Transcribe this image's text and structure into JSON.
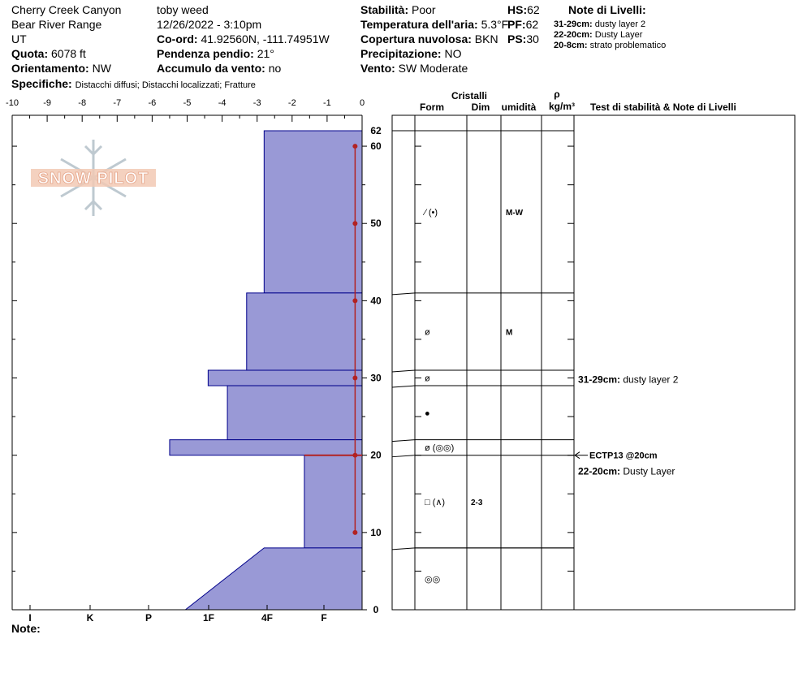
{
  "site": {
    "location": "Cherry Creek Canyon",
    "range": "Bear River Range",
    "state": "UT",
    "elevation_label": "Quota:",
    "elevation": "6078 ft",
    "aspect_label": "Orientamento:",
    "aspect": "NW",
    "observer": "toby weed",
    "datetime": "12/26/2022 - 3:10pm",
    "coord_label": "Co-ord:",
    "coords": "41.92560N, -111.74951W",
    "slope_label": "Pendenza pendio:",
    "slope": "21°",
    "wind_loading_label": "Accumulo da vento:",
    "wind_loading": "no",
    "specifics_label": "Specifiche:",
    "specifics": "Distacchi diffusi;  Distacchi localizzati;  Fratture"
  },
  "conditions": {
    "stability_label": "Stabilità:",
    "stability": "Poor",
    "air_temp_label": "Temperatura dell'aria:",
    "air_temp": "5.3°F",
    "cloud_label": "Copertura nuvolosa:",
    "cloud": "BKN",
    "precip_label": "Precipitazione:",
    "precip": "NO",
    "wind_label": "Vento:",
    "wind": "SW Moderate",
    "hs_label": "HS:",
    "hs": "62",
    "pf_label": "PF:",
    "pf": "62",
    "ps_label": "PS:",
    "ps": "30"
  },
  "layer_notes_header": "Note di Livelli:",
  "layer_notes": [
    {
      "range": "31-29cm:",
      "text": "dusty layer 2"
    },
    {
      "range": "22-20cm:",
      "text": "Dusty Layer"
    },
    {
      "range": "20-8cm:",
      "text": "strato problematico"
    }
  ],
  "footer_note_label": "Note:",
  "logo_text": "SNOWPILOT",
  "table_headers": {
    "cristalli": "Cristalli",
    "form": "Form",
    "dim": "Dim",
    "umidita": "umidità",
    "rho": "ρ",
    "density_unit": "kg/m³",
    "tests": "Test di stabilità & Note di Livelli"
  },
  "layer_table": [
    {
      "top": 62,
      "bottom": 41,
      "form": "⁄ (•)",
      "dim": "",
      "wet": "M-W"
    },
    {
      "top": 41,
      "bottom": 31,
      "form": "ø",
      "dim": "",
      "wet": "M"
    },
    {
      "top": 31,
      "bottom": 29,
      "form": "ø",
      "dim": "",
      "wet": ""
    },
    {
      "top": 29,
      "bottom": 22,
      "form": "●",
      "dim": "",
      "wet": ""
    },
    {
      "top": 22,
      "bottom": 20,
      "form": "ø (◎◎)",
      "dim": "",
      "wet": ""
    },
    {
      "top": 20,
      "bottom": 8,
      "form": "□ (∧)",
      "dim": "2-3",
      "wet": ""
    },
    {
      "top": 8,
      "bottom": 0,
      "form": "◎◎",
      "dim": "",
      "wet": ""
    }
  ],
  "stability_notes": [
    {
      "depth": 30,
      "range": "31-29cm:",
      "text": "dusty layer 2"
    },
    {
      "depth": 20,
      "test": "ECTP13 @20cm"
    },
    {
      "depth": 19,
      "range": "22-20cm:",
      "text": "Dusty Layer"
    }
  ],
  "chart_data": {
    "type": "snow-profile",
    "hardness_axis_ticks": [
      "-10",
      "-9",
      "-8",
      "-7",
      "-6",
      "-5",
      "-4",
      "-3",
      "-2",
      "-1",
      "0"
    ],
    "hardness_axis_labels": [
      "I",
      "K",
      "P",
      "1F",
      "4F",
      "F"
    ],
    "depth_ticks": [
      0,
      10,
      20,
      30,
      40,
      50,
      60
    ],
    "depth_top_label": "62",
    "ylim": [
      0,
      62
    ],
    "xlim": [
      -10,
      0
    ],
    "hardness_layers": [
      {
        "top": 62,
        "bottom": 41,
        "hardness": -2.8
      },
      {
        "top": 41,
        "bottom": 31,
        "hardness": -3.3
      },
      {
        "top": 31,
        "bottom": 29,
        "hardness": -4.4
      },
      {
        "top": 29,
        "bottom": 22,
        "hardness": -3.85
      },
      {
        "top": 22,
        "bottom": 20,
        "hardness": -5.5
      },
      {
        "top": 20,
        "bottom": 8,
        "hardness": -1.65
      },
      {
        "top": 8,
        "bottom": 0,
        "hardness_top": -2.8,
        "hardness_bottom": -5.05
      }
    ],
    "temperature_profile": {
      "x": [
        0,
        0,
        0,
        0,
        0,
        0,
        0
      ],
      "depth": [
        60,
        50,
        40,
        30,
        20,
        10,
        20
      ],
      "points": [
        60,
        50,
        40,
        30,
        20,
        10
      ],
      "value": -0.2
    },
    "fracture_marker_depth": 20,
    "colors": {
      "fill": "#9999d6",
      "stroke": "#00008b",
      "temp": "#b22222"
    }
  }
}
